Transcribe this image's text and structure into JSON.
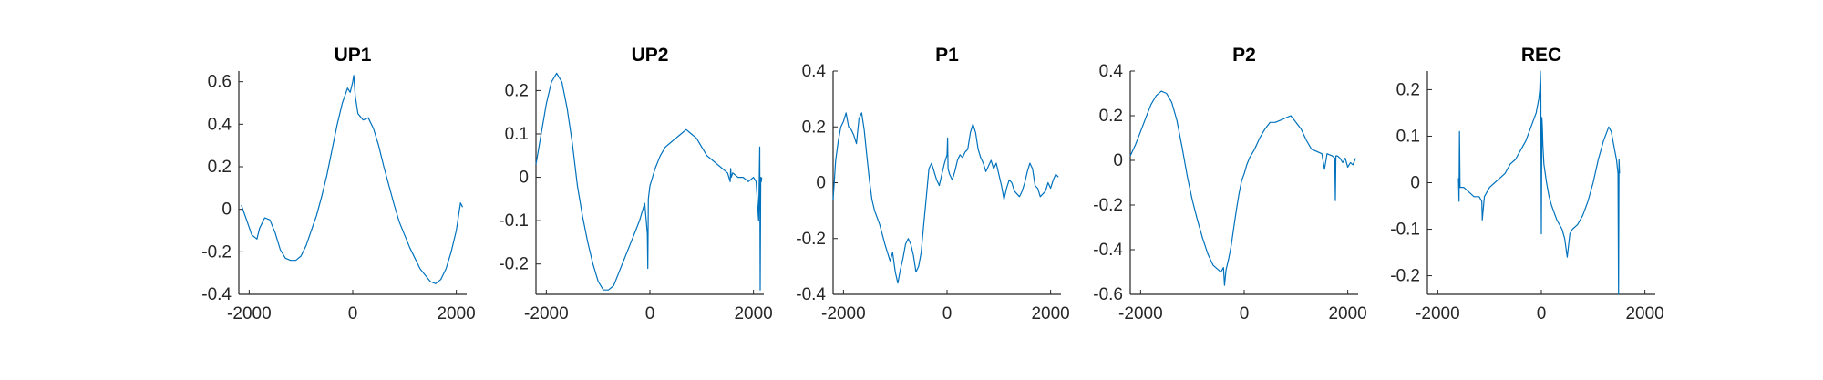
{
  "chart_data": [
    {
      "type": "line",
      "title": "UP1",
      "xlim": [
        -2200,
        2200
      ],
      "ylim": [
        -0.4,
        0.65
      ],
      "xticks": [
        -2000,
        0,
        2000
      ],
      "xtick_labels": [
        "-2000",
        "0",
        "2000"
      ],
      "yticks": [
        -0.4,
        -0.2,
        0,
        0.2,
        0.4,
        0.6
      ],
      "ytick_labels": [
        "-0.4",
        "-0.2",
        "0",
        "0.2",
        "0.4",
        "0.6"
      ],
      "color": "#0072BD",
      "series": [
        {
          "x": [
            -2150,
            -2050,
            -1950,
            -1850,
            -1800,
            -1700,
            -1600,
            -1500,
            -1400,
            -1300,
            -1200,
            -1100,
            -1000,
            -900,
            -800,
            -700,
            -600,
            -500,
            -400,
            -300,
            -200,
            -100,
            -50,
            0,
            20,
            50,
            100,
            200,
            300,
            400,
            500,
            600,
            700,
            800,
            900,
            1000,
            1100,
            1200,
            1300,
            1400,
            1500,
            1600,
            1700,
            1800,
            1900,
            2000,
            2080,
            2120
          ],
          "y": [
            0.02,
            -0.05,
            -0.12,
            -0.14,
            -0.09,
            -0.04,
            -0.05,
            -0.11,
            -0.19,
            -0.23,
            -0.24,
            -0.24,
            -0.22,
            -0.17,
            -0.1,
            -0.03,
            0.06,
            0.16,
            0.28,
            0.4,
            0.5,
            0.57,
            0.55,
            0.6,
            0.63,
            0.53,
            0.45,
            0.42,
            0.43,
            0.38,
            0.3,
            0.2,
            0.11,
            0.02,
            -0.06,
            -0.12,
            -0.18,
            -0.23,
            -0.28,
            -0.31,
            -0.34,
            -0.35,
            -0.33,
            -0.28,
            -0.2,
            -0.1,
            0.03,
            0.01
          ]
        }
      ]
    },
    {
      "type": "line",
      "title": "UP2",
      "xlim": [
        -2200,
        2200
      ],
      "ylim": [
        -0.27,
        0.245
      ],
      "xticks": [
        -2000,
        0,
        2000
      ],
      "xtick_labels": [
        "-2000",
        "0",
        "2000"
      ],
      "yticks": [
        -0.2,
        -0.1,
        0,
        0.1,
        0.2
      ],
      "ytick_labels": [
        "-0.2",
        "-0.1",
        "0",
        "0.1",
        "0.2"
      ],
      "color": "#0072BD",
      "series": [
        {
          "x": [
            -2200,
            -2100,
            -2000,
            -1900,
            -1800,
            -1700,
            -1600,
            -1500,
            -1400,
            -1300,
            -1200,
            -1100,
            -1000,
            -900,
            -800,
            -700,
            -600,
            -500,
            -400,
            -300,
            -200,
            -100,
            -50,
            -40,
            -30,
            0,
            100,
            200,
            300,
            400,
            500,
            600,
            700,
            800,
            900,
            1000,
            1100,
            1200,
            1300,
            1400,
            1500,
            1550,
            1560,
            1570,
            1600,
            1700,
            1800,
            1900,
            2000,
            2050,
            2100,
            2120,
            2130,
            2140,
            2150,
            2160
          ],
          "y": [
            0.03,
            0.1,
            0.17,
            0.22,
            0.24,
            0.22,
            0.16,
            0.08,
            -0.02,
            -0.09,
            -0.15,
            -0.2,
            -0.24,
            -0.26,
            -0.26,
            -0.25,
            -0.22,
            -0.19,
            -0.16,
            -0.13,
            -0.1,
            -0.06,
            -0.13,
            -0.21,
            -0.05,
            -0.02,
            0.02,
            0.05,
            0.07,
            0.08,
            0.09,
            0.1,
            0.11,
            0.1,
            0.09,
            0.07,
            0.05,
            0.04,
            0.03,
            0.02,
            0.01,
            -0.01,
            0.02,
            0.0,
            0.01,
            0.0,
            0.0,
            -0.01,
            0.0,
            -0.01,
            -0.1,
            0.07,
            -0.26,
            0.0,
            -0.01,
            0.0
          ]
        }
      ]
    },
    {
      "type": "line",
      "title": "P1",
      "xlim": [
        -2200,
        2200
      ],
      "ylim": [
        -0.4,
        0.4
      ],
      "xticks": [
        -2000,
        0,
        2000
      ],
      "xtick_labels": [
        "-2000",
        "0",
        "2000"
      ],
      "yticks": [
        -0.4,
        -0.2,
        0,
        0.2,
        0.4
      ],
      "ytick_labels": [
        "-0.4",
        "-0.2",
        "0",
        "0.2",
        "0.4"
      ],
      "color": "#0072BD",
      "series": [
        {
          "x": [
            -2200,
            -2150,
            -2100,
            -2050,
            -2000,
            -1950,
            -1900,
            -1850,
            -1800,
            -1750,
            -1700,
            -1650,
            -1600,
            -1550,
            -1500,
            -1450,
            -1400,
            -1300,
            -1200,
            -1100,
            -1050,
            -1000,
            -950,
            -900,
            -850,
            -800,
            -750,
            -700,
            -650,
            -600,
            -550,
            -500,
            -450,
            -400,
            -350,
            -300,
            -250,
            -200,
            -150,
            -100,
            -50,
            0,
            10,
            20,
            50,
            100,
            150,
            200,
            250,
            300,
            350,
            400,
            450,
            500,
            550,
            600,
            650,
            700,
            750,
            800,
            850,
            900,
            950,
            1000,
            1050,
            1100,
            1150,
            1200,
            1250,
            1300,
            1350,
            1400,
            1450,
            1500,
            1550,
            1600,
            1650,
            1700,
            1750,
            1800,
            1850,
            1900,
            1950,
            2000,
            2050,
            2100,
            2150
          ],
          "y": [
            -0.06,
            0.08,
            0.15,
            0.2,
            0.22,
            0.25,
            0.2,
            0.19,
            0.17,
            0.14,
            0.23,
            0.25,
            0.19,
            0.1,
            0.01,
            -0.06,
            -0.1,
            -0.15,
            -0.22,
            -0.28,
            -0.25,
            -0.32,
            -0.36,
            -0.31,
            -0.27,
            -0.22,
            -0.2,
            -0.22,
            -0.26,
            -0.32,
            -0.3,
            -0.25,
            -0.15,
            -0.05,
            0.05,
            0.07,
            0.04,
            0.01,
            -0.01,
            0.03,
            0.07,
            0.1,
            0.16,
            0.05,
            0.03,
            0.01,
            0.04,
            0.08,
            0.1,
            0.09,
            0.11,
            0.12,
            0.18,
            0.21,
            0.18,
            0.12,
            0.09,
            0.07,
            0.04,
            0.06,
            0.08,
            0.05,
            0.07,
            0.03,
            -0.01,
            -0.06,
            -0.02,
            0.01,
            0.0,
            -0.03,
            -0.04,
            -0.05,
            -0.03,
            0.0,
            0.04,
            0.07,
            0.05,
            -0.01,
            -0.02,
            -0.05,
            -0.04,
            -0.03,
            0.0,
            -0.02,
            0.01,
            0.03,
            0.02
          ]
        }
      ]
    },
    {
      "type": "line",
      "title": "P2",
      "xlim": [
        -2200,
        2200
      ],
      "ylim": [
        -0.6,
        0.4
      ],
      "xticks": [
        -2000,
        0,
        2000
      ],
      "xtick_labels": [
        "-2000",
        "0",
        "2000"
      ],
      "yticks": [
        -0.6,
        -0.4,
        -0.2,
        0,
        0.2,
        0.4
      ],
      "ytick_labels": [
        "-0.6",
        "-0.4",
        "-0.2",
        "0",
        "0.2",
        "0.4"
      ],
      "color": "#0072BD",
      "series": [
        {
          "x": [
            -2200,
            -2100,
            -2000,
            -1900,
            -1800,
            -1700,
            -1600,
            -1500,
            -1400,
            -1300,
            -1200,
            -1100,
            -1000,
            -900,
            -800,
            -700,
            -600,
            -500,
            -450,
            -400,
            -380,
            -350,
            -300,
            -250,
            -200,
            -150,
            -100,
            -50,
            0,
            50,
            100,
            200,
            300,
            400,
            500,
            600,
            700,
            800,
            900,
            1000,
            1100,
            1200,
            1300,
            1400,
            1500,
            1550,
            1600,
            1700,
            1750,
            1760,
            1770,
            1800,
            1850,
            1900,
            1950,
            2000,
            2050,
            2100,
            2150
          ],
          "y": [
            0.02,
            0.07,
            0.13,
            0.19,
            0.25,
            0.29,
            0.31,
            0.3,
            0.26,
            0.18,
            0.06,
            -0.07,
            -0.18,
            -0.27,
            -0.35,
            -0.42,
            -0.47,
            -0.49,
            -0.5,
            -0.48,
            -0.56,
            -0.49,
            -0.44,
            -0.38,
            -0.3,
            -0.22,
            -0.15,
            -0.09,
            -0.06,
            -0.02,
            0.01,
            0.05,
            0.1,
            0.14,
            0.17,
            0.17,
            0.18,
            0.19,
            0.2,
            0.17,
            0.14,
            0.09,
            0.05,
            0.04,
            0.03,
            -0.04,
            0.03,
            0.02,
            0.01,
            -0.18,
            0.02,
            0.02,
            0.01,
            -0.01,
            0.01,
            -0.03,
            -0.01,
            -0.02,
            0.01
          ]
        }
      ]
    },
    {
      "type": "line",
      "title": "REC",
      "xlim": [
        -2200,
        2200
      ],
      "ylim": [
        -0.24,
        0.24
      ],
      "xticks": [
        -2000,
        0,
        2000
      ],
      "xtick_labels": [
        "-2000",
        "0",
        "2000"
      ],
      "yticks": [
        -0.2,
        -0.1,
        0,
        0.1,
        0.2
      ],
      "ytick_labels": [
        "-0.2",
        "-0.1",
        "0",
        "0.1",
        "0.2"
      ],
      "color": "#0072BD",
      "series": [
        {
          "x": [
            -1600,
            -1590,
            -1580,
            -1570,
            -1500,
            -1400,
            -1300,
            -1200,
            -1150,
            -1140,
            -1100,
            -1000,
            -900,
            -800,
            -700,
            -600,
            -500,
            -400,
            -300,
            -200,
            -100,
            -50,
            -30,
            -20,
            -10,
            0,
            10,
            20,
            30,
            50,
            100,
            150,
            200,
            300,
            400,
            450,
            500,
            550,
            600,
            700,
            800,
            900,
            1000,
            1100,
            1200,
            1300,
            1350,
            1400,
            1450,
            1480,
            1490,
            1500,
            1510
          ],
          "y": [
            0.01,
            -0.04,
            0.11,
            -0.01,
            -0.01,
            -0.02,
            -0.03,
            -0.03,
            -0.04,
            -0.08,
            -0.03,
            -0.01,
            0.0,
            0.01,
            0.02,
            0.04,
            0.05,
            0.07,
            0.09,
            0.12,
            0.15,
            0.18,
            0.2,
            0.24,
            0.21,
            -0.11,
            0.14,
            0.12,
            0.08,
            0.04,
            0.0,
            -0.03,
            -0.05,
            -0.08,
            -0.1,
            -0.12,
            -0.16,
            -0.11,
            -0.1,
            -0.09,
            -0.07,
            -0.04,
            0.0,
            0.05,
            0.09,
            0.12,
            0.11,
            0.08,
            0.05,
            0.02,
            -0.24,
            0.05,
            0.02
          ]
        }
      ]
    }
  ]
}
